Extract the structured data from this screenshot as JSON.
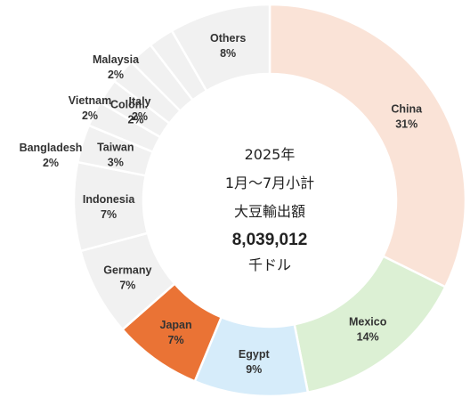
{
  "chart_data": {
    "type": "pie",
    "center_text": {
      "line1": "2025年",
      "line2": "1月〜7月小計",
      "line3": "大豆輸出額",
      "total": "8,039,012",
      "unit": "千ドル"
    },
    "slices": [
      {
        "name": "China",
        "percent": 31,
        "label": "31%",
        "color": "#fae3d7"
      },
      {
        "name": "Mexico",
        "percent": 14,
        "label": "14%",
        "color": "#dcf0d4"
      },
      {
        "name": "Egypt",
        "percent": 9,
        "label": "9%",
        "color": "#d6ecfa"
      },
      {
        "name": "Japan",
        "percent": 7,
        "label": "7%",
        "color": "#ea7335"
      },
      {
        "name": "Germany",
        "percent": 7,
        "label": "7%",
        "color": "#f1f1f1"
      },
      {
        "name": "Indonesia",
        "percent": 7,
        "label": "7%",
        "color": "#f1f1f1"
      },
      {
        "name": "Taiwan",
        "percent": 3,
        "label": "3%",
        "color": "#f1f1f1"
      },
      {
        "name": "Bangladesh",
        "percent": 2,
        "label": "2%",
        "color": "#f1f1f1"
      },
      {
        "name": "Colombia",
        "percent": 2,
        "label": "2%",
        "color": "#f1f1f1"
      },
      {
        "name": "Vietnam",
        "percent": 2,
        "label": "2%",
        "color": "#f1f1f1"
      },
      {
        "name": "Italy",
        "percent": 2,
        "label": "2%",
        "color": "#f1f1f1"
      },
      {
        "name": "Malaysia",
        "percent": 2,
        "label": "2%",
        "color": "#f1f1f1"
      },
      {
        "name": "Others",
        "percent": 8,
        "label": "8%",
        "color": "#f1f1f1"
      }
    ]
  }
}
